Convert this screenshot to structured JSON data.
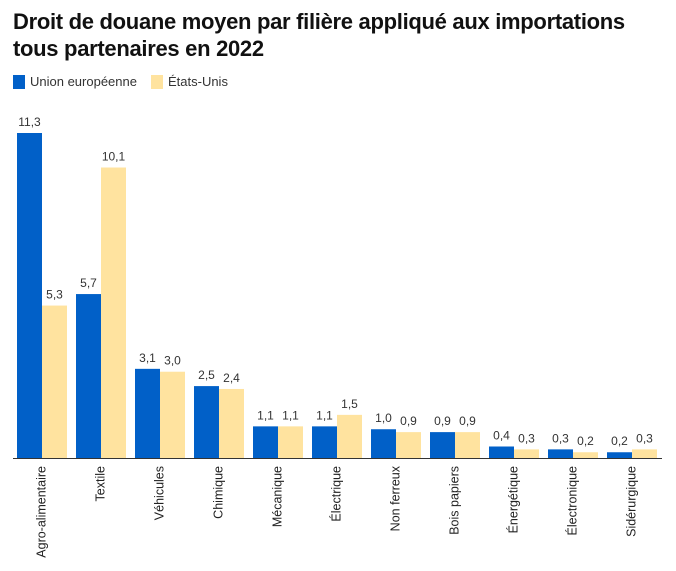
{
  "chart_data": {
    "type": "bar",
    "title": "Droit de douane moyen par filière appliqué aux importations tous partenaires en 2022",
    "xlabel": "",
    "ylabel": "",
    "ylim": [
      0,
      11.3
    ],
    "grid": false,
    "legend_position": "top-left",
    "categories": [
      "Agro-alimentaire",
      "Textile",
      "Véhicules",
      "Chimique",
      "Mécanique",
      "Électrique",
      "Non ferreux",
      "Bois papiers",
      "Énergétique",
      "Électronique",
      "Sidérurgique"
    ],
    "series": [
      {
        "name": "Union européenne",
        "color": "#0160C8",
        "values": [
          11.3,
          5.7,
          3.1,
          2.5,
          1.1,
          1.1,
          1.0,
          0.9,
          0.4,
          0.3,
          0.2
        ],
        "labels": [
          "11,3",
          "5,7",
          "3,1",
          "2,5",
          "1,1",
          "1,1",
          "1,0",
          "0,9",
          "0,4",
          "0,3",
          "0,2"
        ]
      },
      {
        "name": "États-Unis",
        "color": "#FFE39F",
        "values": [
          5.3,
          10.1,
          3.0,
          2.4,
          1.1,
          1.5,
          0.9,
          0.9,
          0.3,
          0.2,
          0.3
        ],
        "labels": [
          "5,3",
          "10,1",
          "3,0",
          "2,4",
          "1,1",
          "1,5",
          "0,9",
          "0,9",
          "0,3",
          "0,2",
          "0,3"
        ]
      }
    ]
  }
}
